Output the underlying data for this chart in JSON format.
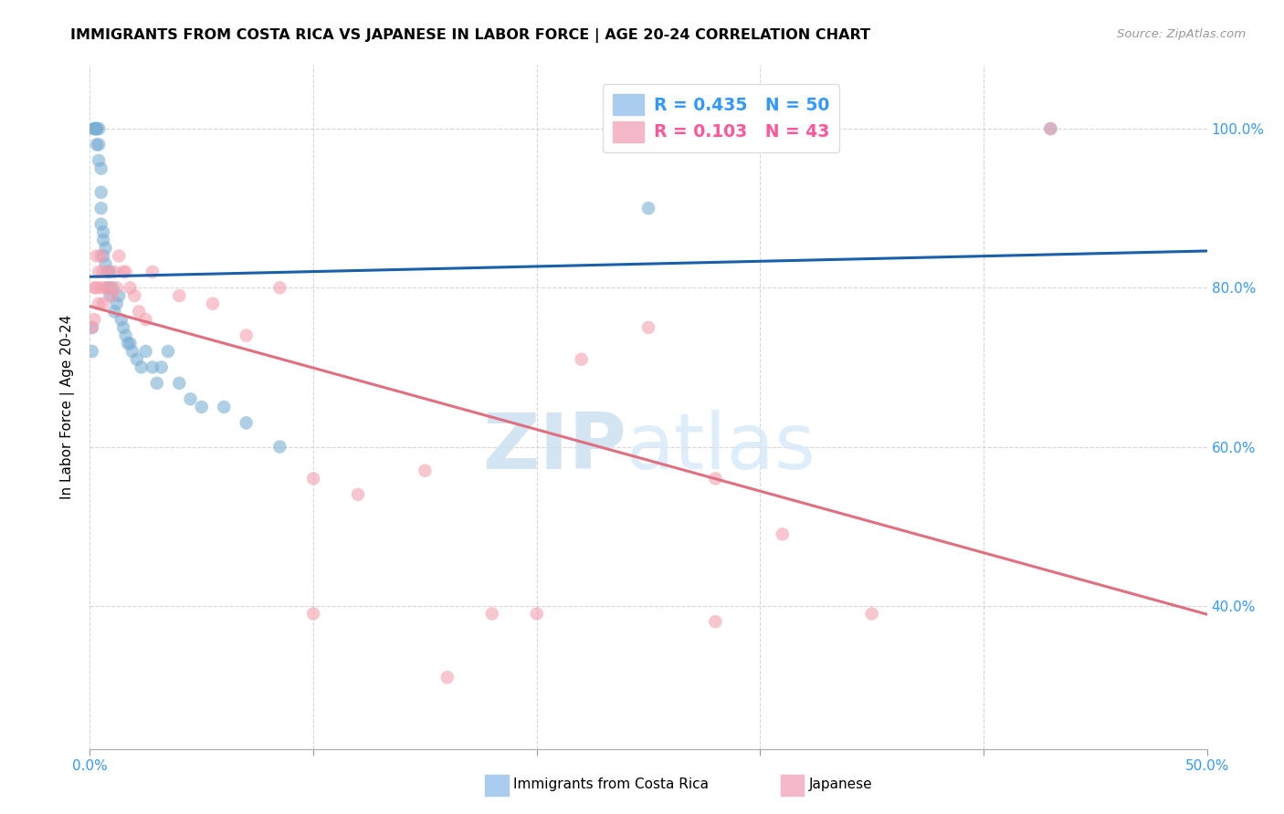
{
  "title": "IMMIGRANTS FROM COSTA RICA VS JAPANESE IN LABOR FORCE | AGE 20-24 CORRELATION CHART",
  "source": "Source: ZipAtlas.com",
  "ylabel": "In Labor Force | Age 20-24",
  "xlim": [
    0.0,
    0.5
  ],
  "ylim": [
    0.22,
    1.08
  ],
  "xtick_vals": [
    0.0,
    0.1,
    0.2,
    0.3,
    0.4,
    0.5
  ],
  "xtick_labels_show": [
    "0.0%",
    "",
    "",
    "",
    "",
    "50.0%"
  ],
  "ytick_vals": [
    0.4,
    0.6,
    0.8,
    1.0
  ],
  "ytick_labels": [
    "40.0%",
    "60.0%",
    "80.0%",
    "100.0%"
  ],
  "costa_rica_color": "#7bafd4",
  "japanese_color": "#f4a0b0",
  "trendline_blue": "#1a5faa",
  "trendline_pink": "#e07080",
  "watermark_zip": "ZIP",
  "watermark_atlas": "atlas",
  "legend_label1": "R = 0.435   N = 50",
  "legend_label2": "R = 0.103   N = 43",
  "background_color": "#ffffff",
  "costa_rica_x": [
    0.001,
    0.001,
    0.002,
    0.002,
    0.002,
    0.003,
    0.003,
    0.003,
    0.003,
    0.004,
    0.004,
    0.004,
    0.005,
    0.005,
    0.005,
    0.005,
    0.006,
    0.006,
    0.006,
    0.007,
    0.007,
    0.008,
    0.008,
    0.009,
    0.009,
    0.01,
    0.011,
    0.012,
    0.013,
    0.014,
    0.015,
    0.016,
    0.017,
    0.018,
    0.019,
    0.021,
    0.023,
    0.025,
    0.028,
    0.03,
    0.032,
    0.035,
    0.04,
    0.045,
    0.05,
    0.06,
    0.07,
    0.085,
    0.25,
    0.43
  ],
  "costa_rica_y": [
    0.75,
    0.72,
    1.0,
    1.0,
    1.0,
    1.0,
    1.0,
    1.0,
    0.98,
    1.0,
    0.98,
    0.96,
    0.95,
    0.92,
    0.9,
    0.88,
    0.87,
    0.86,
    0.84,
    0.85,
    0.83,
    0.82,
    0.8,
    0.82,
    0.79,
    0.8,
    0.77,
    0.78,
    0.79,
    0.76,
    0.75,
    0.74,
    0.73,
    0.73,
    0.72,
    0.71,
    0.7,
    0.72,
    0.7,
    0.68,
    0.7,
    0.72,
    0.68,
    0.66,
    0.65,
    0.65,
    0.63,
    0.6,
    0.9,
    1.0
  ],
  "japanese_x": [
    0.001,
    0.002,
    0.002,
    0.003,
    0.003,
    0.004,
    0.004,
    0.005,
    0.005,
    0.006,
    0.006,
    0.007,
    0.008,
    0.009,
    0.01,
    0.011,
    0.012,
    0.013,
    0.015,
    0.016,
    0.018,
    0.02,
    0.022,
    0.025,
    0.028,
    0.04,
    0.055,
    0.07,
    0.085,
    0.1,
    0.12,
    0.15,
    0.18,
    0.2,
    0.22,
    0.25,
    0.28,
    0.31,
    0.35,
    0.43,
    0.1,
    0.16,
    0.28
  ],
  "japanese_y": [
    0.75,
    0.8,
    0.76,
    0.84,
    0.8,
    0.82,
    0.78,
    0.84,
    0.8,
    0.82,
    0.78,
    0.8,
    0.82,
    0.8,
    0.79,
    0.82,
    0.8,
    0.84,
    0.82,
    0.82,
    0.8,
    0.79,
    0.77,
    0.76,
    0.82,
    0.79,
    0.78,
    0.74,
    0.8,
    0.56,
    0.54,
    0.57,
    0.39,
    0.39,
    0.71,
    0.75,
    0.56,
    0.49,
    0.39,
    1.0,
    0.39,
    0.31,
    0.38
  ]
}
